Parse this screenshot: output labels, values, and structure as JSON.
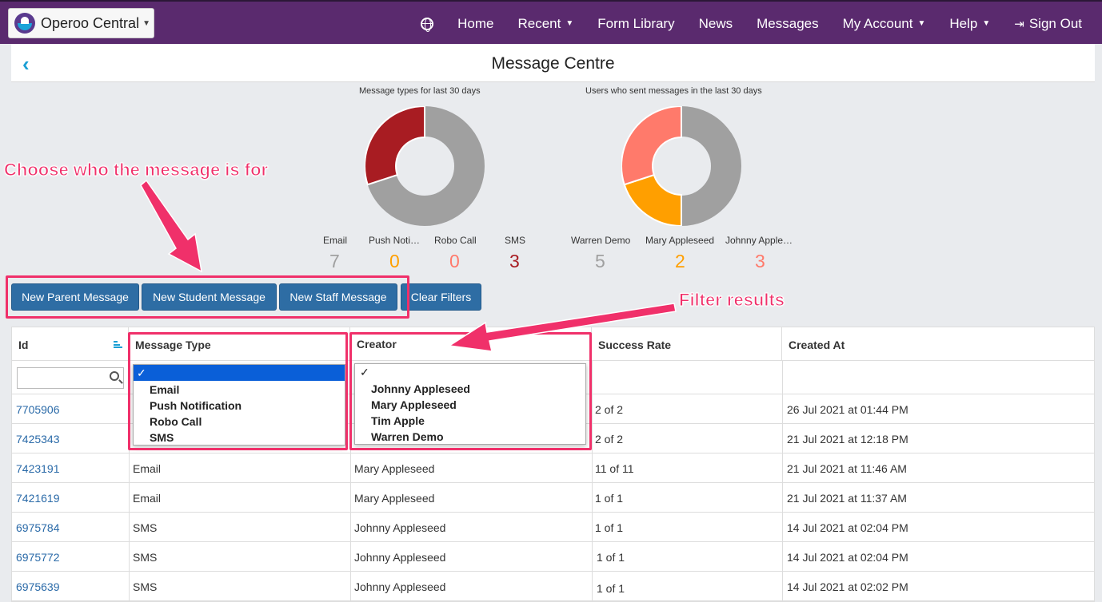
{
  "brand": {
    "name": "Operoo Central"
  },
  "nav": {
    "home": "Home",
    "recent": "Recent",
    "form_library": "Form Library",
    "news": "News",
    "messages": "Messages",
    "my_account": "My Account",
    "help": "Help",
    "sign_out": "Sign Out"
  },
  "page": {
    "title": "Message Centre",
    "back_icon": "‹"
  },
  "charts": {
    "types": {
      "title": "Message types for last 30 days",
      "legend": [
        {
          "label": "Email",
          "value": "7",
          "color": "#a0a0a0"
        },
        {
          "label": "Push Noti…",
          "value": "0",
          "color": "#ff9f00"
        },
        {
          "label": "Robo Call",
          "value": "0",
          "color": "#ff7a6b"
        },
        {
          "label": "SMS",
          "value": "3",
          "color": "#a81c22"
        }
      ]
    },
    "users": {
      "title": "Users who sent messages in the last 30 days",
      "legend": [
        {
          "label": "Warren Demo",
          "value": "5",
          "color": "#a0a0a0"
        },
        {
          "label": "Mary Appleseed",
          "value": "2",
          "color": "#ff9f00"
        },
        {
          "label": "Johnny Apple…",
          "value": "3",
          "color": "#ff7a6b"
        }
      ]
    }
  },
  "buttons": {
    "new_parent": "New Parent Message",
    "new_student": "New Student Message",
    "new_staff": "New Staff Message",
    "clear_filters": "Clear Filters"
  },
  "annotations": {
    "choose": "Choose who the message is for",
    "filter": "Filter results"
  },
  "table": {
    "headers": {
      "id": "Id",
      "type": "Message Type",
      "creator": "Creator",
      "success": "Success Rate",
      "created": "Created At"
    },
    "type_options": [
      "✓",
      "Email",
      "Push Notification",
      "Robo Call",
      "SMS"
    ],
    "creator_options": [
      "✓",
      "Johnny Appleseed",
      "Mary Appleseed",
      "Tim Apple",
      "Warren Demo"
    ],
    "rows": [
      {
        "id": "7705906",
        "type": "",
        "creator": "",
        "success": "2 of 2",
        "created": "26 Jul 2021 at 01:44 PM"
      },
      {
        "id": "7425343",
        "type": "",
        "creator": "",
        "success": "2 of 2",
        "created": "21 Jul 2021 at 12:18 PM"
      },
      {
        "id": "7423191",
        "type": "Email",
        "creator": "Mary Appleseed",
        "success": "11 of 11",
        "created": "21 Jul 2021 at 11:46 AM"
      },
      {
        "id": "7421619",
        "type": "Email",
        "creator": "Mary Appleseed",
        "success": "1 of 1",
        "created": "21 Jul 2021 at 11:37 AM"
      },
      {
        "id": "6975784",
        "type": "SMS",
        "creator": "Johnny Appleseed",
        "success": "1 of 1",
        "created": "14 Jul 2021 at 02:04 PM"
      },
      {
        "id": "6975772",
        "type": "SMS",
        "creator": "Johnny Appleseed",
        "success": "1 of 1",
        "created": "14 Jul 2021 at 02:04 PM"
      },
      {
        "id": "6975639",
        "type": "SMS",
        "creator": "Johnny Appleseed",
        "success": "1 of 1",
        "created": "14 Jul 2021 at 02:02 PM"
      }
    ]
  }
}
